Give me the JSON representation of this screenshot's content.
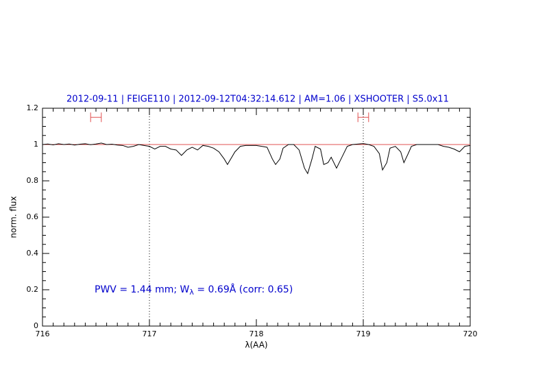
{
  "chart_data": {
    "type": "line",
    "title": "2012-09-11 | FEIGE110 | 2012-09-12T04:32:14.612 | AM=1.06 | XSHOOTER | S5.0x11",
    "x_label": "λ(AA)",
    "y_label": "norm. flux",
    "annotation": {
      "before": "PWV = 1.44 mm; W",
      "sub": "λ",
      "after": " = 0.69Å (corr: 0.65)"
    },
    "xlim": [
      716,
      720
    ],
    "xticks": [
      716,
      717,
      718,
      719,
      720
    ],
    "ylim": [
      0,
      1.2
    ],
    "yticks": [
      0,
      0.2,
      0.4,
      0.6,
      0.8,
      1,
      1.2
    ],
    "reference_line": {
      "y": 1,
      "color": "#e05050"
    },
    "vlines": [
      717,
      719
    ],
    "intervals": {
      "color": "#e05050",
      "items": [
        {
          "x": [
            716.45,
            716.55
          ],
          "y": 1.15
        },
        {
          "x": [
            718.95,
            719.05
          ],
          "y": 1.15
        }
      ]
    },
    "series": [
      {
        "color": "#000000",
        "x": [
          716.0,
          716.05,
          716.1,
          716.15,
          716.2,
          716.25,
          716.3,
          716.35,
          716.4,
          716.45,
          716.5,
          716.55,
          716.6,
          716.65,
          716.7,
          716.75,
          716.8,
          716.85,
          716.9,
          716.95,
          717.0,
          717.05,
          717.1,
          717.15,
          717.2,
          717.25,
          717.3,
          717.35,
          717.4,
          717.45,
          717.5,
          717.55,
          717.6,
          717.65,
          717.7,
          717.73,
          717.8,
          717.85,
          717.9,
          718.0,
          718.05,
          718.1,
          718.15,
          718.18,
          718.22,
          718.25,
          718.3,
          718.35,
          718.4,
          718.45,
          718.48,
          718.52,
          718.55,
          718.6,
          718.63,
          718.67,
          718.7,
          718.75,
          718.8,
          718.85,
          718.9,
          719.0,
          719.05,
          719.1,
          719.15,
          719.18,
          719.22,
          719.25,
          719.3,
          719.35,
          719.38,
          719.42,
          719.45,
          719.5,
          719.6,
          719.7,
          719.75,
          719.8,
          719.85,
          719.9,
          719.95,
          720.0
        ],
        "values": [
          1.0,
          1.003,
          0.998,
          1.004,
          1.0,
          1.003,
          0.997,
          1.002,
          1.004,
          0.999,
          1.003,
          1.008,
          1.0,
          1.002,
          0.997,
          0.995,
          0.985,
          0.99,
          1.0,
          0.995,
          0.99,
          0.975,
          0.99,
          0.99,
          0.975,
          0.97,
          0.94,
          0.97,
          0.985,
          0.97,
          0.995,
          0.99,
          0.98,
          0.96,
          0.92,
          0.89,
          0.96,
          0.99,
          0.995,
          0.995,
          0.99,
          0.985,
          0.92,
          0.89,
          0.92,
          0.98,
          1.0,
          1.0,
          0.97,
          0.87,
          0.84,
          0.92,
          0.99,
          0.975,
          0.89,
          0.9,
          0.93,
          0.87,
          0.93,
          0.99,
          1.0,
          1.005,
          1.0,
          0.99,
          0.95,
          0.86,
          0.9,
          0.98,
          0.99,
          0.96,
          0.9,
          0.95,
          0.99,
          1.0,
          1.0,
          1.0,
          0.99,
          0.985,
          0.975,
          0.96,
          0.99,
          0.995
        ]
      }
    ]
  }
}
